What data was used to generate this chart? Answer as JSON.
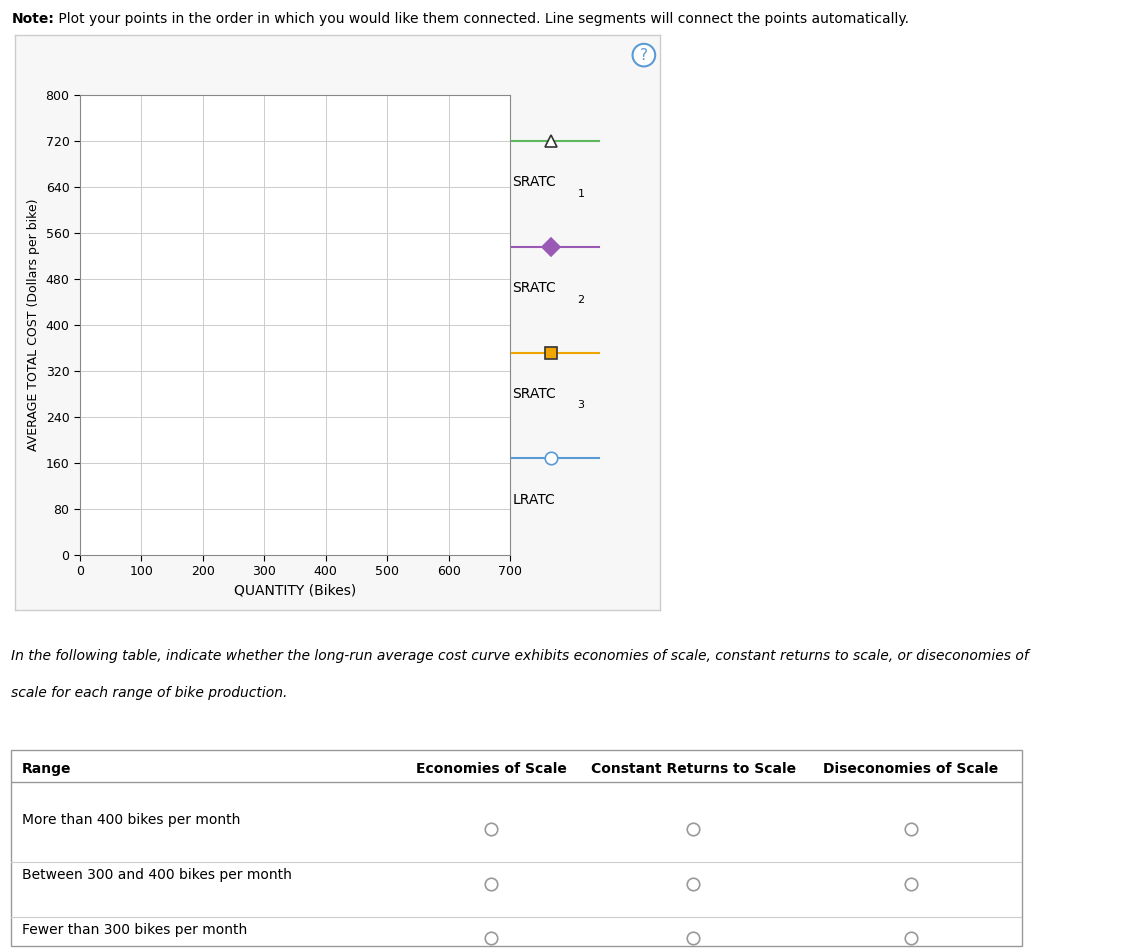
{
  "note_bold": "Note:",
  "note_rest": " Plot your points in the order in which you would like them connected. Line segments will connect the points automatically.",
  "chart": {
    "xlim": [
      0,
      700
    ],
    "ylim": [
      0,
      800
    ],
    "xticks": [
      0,
      100,
      200,
      300,
      400,
      500,
      600,
      700
    ],
    "yticks": [
      0,
      80,
      160,
      240,
      320,
      400,
      480,
      560,
      640,
      720,
      800
    ],
    "xlabel": "QUANTITY (Bikes)",
    "ylabel": "AVERAGE TOTAL COST (Dollars per bike)",
    "grid_color": "#cccccc",
    "bg_color": "#ffffff"
  },
  "legend": [
    {
      "label": "SRATC",
      "sub": "1",
      "line_color": "#5cb85c",
      "marker": "^",
      "marker_face": "white",
      "marker_edge": "#333333"
    },
    {
      "label": "SRATC",
      "sub": "2",
      "line_color": "#9b59b6",
      "marker": "D",
      "marker_face": "#9b59b6",
      "marker_edge": "#9b59b6"
    },
    {
      "label": "SRATC",
      "sub": "3",
      "line_color": "#f0a500",
      "marker": "s",
      "marker_face": "#f0a500",
      "marker_edge": "#333333"
    },
    {
      "label": "LRATC",
      "sub": "",
      "line_color": "#5b9bd5",
      "marker": "o",
      "marker_face": "white",
      "marker_edge": "#5b9bd5"
    }
  ],
  "italic_line1": "In the following table, indicate whether the long-run average cost curve exhibits economies of scale, constant returns to scale, or diseconomies of",
  "italic_line2": "scale for each range of bike production.",
  "table_headers": [
    "Range",
    "Economies of Scale",
    "Constant Returns to Scale",
    "Diseconomies of Scale"
  ],
  "table_rows": [
    "More than 400 bikes per month",
    "Between 300 and 400 bikes per month",
    "Fewer than 300 bikes per month"
  ],
  "panel_bg": "#f7f7f7",
  "panel_border": "#cccccc"
}
